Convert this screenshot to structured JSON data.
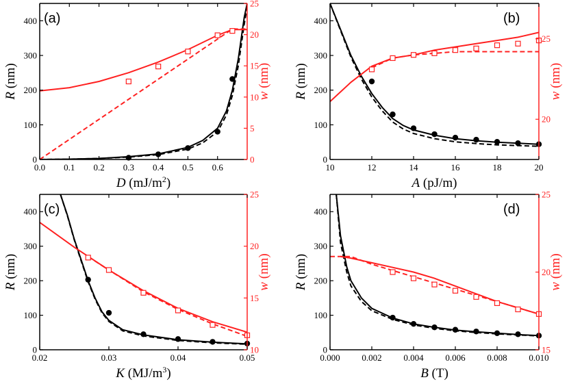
{
  "colors": {
    "black": "#000000",
    "red": "#ff2020"
  },
  "chart_data": [
    {
      "type": "line",
      "panel_label": "(a)",
      "xlabel_sym": "D",
      "xlabel_unit": " (mJ/m",
      "xlabel_sup": "2",
      "xlabel_end": ")",
      "ylabel_left_sym": "R",
      "ylabel_left_unit": " (nm)",
      "ylabel_right_sym": "w",
      "ylabel_right_unit": " (nm)",
      "xlim": [
        0,
        0.7
      ],
      "ylim_left": [
        0,
        450
      ],
      "ylim_right": [
        0,
        25
      ],
      "x_ticks": [
        0,
        0.1,
        0.2,
        0.3,
        0.4,
        0.5,
        0.6
      ],
      "x_tick_labels": [
        "0.0",
        "0.1",
        "0.2",
        "0.3",
        "0.4",
        "0.5",
        "0.6"
      ],
      "y_left_ticks": [
        0,
        100,
        200,
        300,
        400
      ],
      "y_left_tick_labels": [
        "0",
        "100",
        "200",
        "300",
        "400"
      ],
      "y_right_ticks": [
        0,
        5,
        10,
        15,
        20,
        25
      ],
      "y_right_tick_labels": [
        "0",
        "5",
        "10",
        "15",
        "20",
        "25"
      ],
      "series": [
        {
          "axis": "left",
          "color": "black",
          "style": "points",
          "marker": "filled-circle",
          "x": [
            0.3,
            0.4,
            0.5,
            0.6,
            0.65
          ],
          "y": [
            5,
            15,
            33,
            80,
            232
          ]
        },
        {
          "axis": "left",
          "color": "black",
          "style": "solid",
          "x": [
            0,
            0.1,
            0.2,
            0.3,
            0.4,
            0.5,
            0.55,
            0.6,
            0.63,
            0.65,
            0.67,
            0.69,
            0.7
          ],
          "y": [
            0,
            1,
            3,
            8,
            16,
            35,
            55,
            90,
            140,
            200,
            290,
            410,
            450
          ]
        },
        {
          "axis": "left",
          "color": "black",
          "style": "dashed",
          "x": [
            0,
            0.1,
            0.2,
            0.3,
            0.4,
            0.5,
            0.55,
            0.6,
            0.63,
            0.65,
            0.67,
            0.69,
            0.7
          ],
          "y": [
            0,
            1,
            3,
            7,
            14,
            30,
            48,
            80,
            128,
            185,
            270,
            390,
            440
          ]
        },
        {
          "axis": "right",
          "color": "red",
          "style": "open-square",
          "x": [
            0.3,
            0.4,
            0.5,
            0.6,
            0.65
          ],
          "y": [
            12.5,
            14.9,
            17.3,
            19.9,
            20.6
          ]
        },
        {
          "axis": "right",
          "color": "red",
          "style": "solid",
          "x": [
            0,
            0.1,
            0.2,
            0.3,
            0.4,
            0.5,
            0.6,
            0.65,
            0.7
          ],
          "y": [
            11.0,
            11.5,
            12.5,
            13.9,
            15.6,
            17.6,
            19.9,
            20.8,
            20.8
          ]
        },
        {
          "axis": "right",
          "color": "red",
          "style": "dashed",
          "x": [
            0,
            0.65,
            0.7
          ],
          "y": [
            0,
            20.9,
            20.9
          ]
        }
      ]
    },
    {
      "type": "line",
      "panel_label": "(b)",
      "xlabel_sym": "A",
      "xlabel_unit": " (pJ/m)",
      "xlabel_sup": "",
      "xlabel_end": "",
      "ylabel_left_sym": "R",
      "ylabel_left_unit": " (nm)",
      "ylabel_right_sym": "w",
      "ylabel_right_unit": " (nm)",
      "xlim": [
        10,
        20
      ],
      "ylim_left": [
        0,
        450
      ],
      "ylim_right": [
        17.5,
        27.2
      ],
      "x_ticks": [
        10,
        12,
        14,
        16,
        18,
        20
      ],
      "x_tick_labels": [
        "10",
        "12",
        "14",
        "16",
        "18",
        "20"
      ],
      "y_left_ticks": [
        0,
        100,
        200,
        300,
        400
      ],
      "y_left_tick_labels": [
        "0",
        "100",
        "200",
        "300",
        "400"
      ],
      "y_right_ticks": [
        20,
        25
      ],
      "y_right_tick_labels": [
        "20",
        "25"
      ],
      "series": [
        {
          "axis": "left",
          "color": "black",
          "style": "points",
          "marker": "filled-circle",
          "x": [
            12,
            13,
            14,
            15,
            16,
            17,
            18,
            19,
            20
          ],
          "y": [
            225,
            130,
            90,
            73,
            63,
            57,
            51,
            47,
            44
          ]
        },
        {
          "axis": "left",
          "color": "black",
          "style": "solid",
          "x": [
            10,
            10.5,
            11,
            11.5,
            12,
            12.5,
            13,
            13.5,
            14,
            15,
            16,
            17,
            18,
            19,
            20
          ],
          "y": [
            450,
            375,
            300,
            240,
            190,
            150,
            118,
            98,
            85,
            70,
            60,
            54,
            50,
            47,
            44
          ]
        },
        {
          "axis": "left",
          "color": "black",
          "style": "dashed",
          "x": [
            10,
            10.5,
            11,
            11.5,
            12,
            12.5,
            13,
            13.5,
            14,
            15,
            16,
            17,
            18,
            19,
            20
          ],
          "y": [
            450,
            372,
            295,
            232,
            180,
            140,
            108,
            88,
            75,
            60,
            51,
            46,
            42,
            40,
            38
          ]
        },
        {
          "axis": "right",
          "color": "red",
          "style": "open-square",
          "x": [
            12,
            13,
            14,
            15,
            16,
            17,
            18,
            19,
            20
          ],
          "y": [
            23.1,
            23.8,
            24.0,
            24.1,
            24.3,
            24.4,
            24.6,
            24.7,
            24.9
          ]
        },
        {
          "axis": "right",
          "color": "red",
          "style": "solid",
          "x": [
            10,
            11,
            12,
            13,
            14,
            15,
            16,
            17,
            18,
            19,
            20
          ],
          "y": [
            21.1,
            22.3,
            23.3,
            23.8,
            24.0,
            24.3,
            24.5,
            24.7,
            24.9,
            25.1,
            25.4
          ]
        },
        {
          "axis": "right",
          "color": "red",
          "style": "dashed",
          "x": [
            12,
            13,
            14,
            15,
            16,
            17,
            18,
            19,
            20
          ],
          "y": [
            23.2,
            23.8,
            24.0,
            24.1,
            24.2,
            24.2,
            24.2,
            24.2,
            24.2
          ]
        }
      ]
    },
    {
      "type": "line",
      "panel_label": "(c)",
      "xlabel_sym": "K",
      "xlabel_unit": " (MJ/m",
      "xlabel_sup": "3",
      "xlabel_end": ")",
      "ylabel_left_sym": "R",
      "ylabel_left_unit": " (nm)",
      "ylabel_right_sym": "w",
      "ylabel_right_unit": " (nm)",
      "xlim": [
        0.02,
        0.05
      ],
      "ylim_left": [
        0,
        450
      ],
      "ylim_right": [
        10,
        25
      ],
      "x_ticks": [
        0.02,
        0.03,
        0.04,
        0.05
      ],
      "x_tick_labels": [
        "0.02",
        "0.03",
        "0.04",
        "0.05"
      ],
      "y_left_ticks": [
        0,
        100,
        200,
        300,
        400
      ],
      "y_left_tick_labels": [
        "0",
        "100",
        "200",
        "300",
        "400"
      ],
      "y_right_ticks": [
        10,
        15,
        20,
        25
      ],
      "y_right_tick_labels": [
        "10",
        "15",
        "20",
        "25"
      ],
      "series": [
        {
          "axis": "left",
          "color": "black",
          "style": "points",
          "marker": "filled-circle",
          "x": [
            0.027,
            0.03,
            0.035,
            0.04,
            0.045,
            0.05
          ],
          "y": [
            203,
            107,
            45,
            31,
            23,
            18
          ]
        },
        {
          "axis": "left",
          "color": "black",
          "style": "solid",
          "x": [
            0.023,
            0.024,
            0.025,
            0.026,
            0.027,
            0.028,
            0.029,
            0.03,
            0.032,
            0.035,
            0.04,
            0.045,
            0.05
          ],
          "y": [
            450,
            390,
            320,
            260,
            200,
            150,
            110,
            85,
            58,
            43,
            29,
            22,
            17
          ]
        },
        {
          "axis": "left",
          "color": "black",
          "style": "dashed",
          "x": [
            0.023,
            0.024,
            0.025,
            0.026,
            0.027,
            0.028,
            0.029,
            0.03,
            0.032,
            0.035,
            0.04,
            0.045,
            0.05
          ],
          "y": [
            450,
            388,
            318,
            257,
            197,
            147,
            107,
            82,
            55,
            40,
            27,
            20,
            16
          ]
        },
        {
          "axis": "right",
          "color": "red",
          "style": "open-square",
          "x": [
            0.027,
            0.03,
            0.035,
            0.04,
            0.045,
            0.05
          ],
          "y": [
            18.9,
            17.7,
            15.5,
            13.8,
            12.4,
            11.4
          ]
        },
        {
          "axis": "right",
          "color": "red",
          "style": "solid",
          "x": [
            0.02,
            0.025,
            0.03,
            0.035,
            0.04,
            0.045,
            0.05
          ],
          "y": [
            22.3,
            19.9,
            17.7,
            15.7,
            14.0,
            12.7,
            11.7
          ]
        },
        {
          "axis": "right",
          "color": "red",
          "style": "dashed",
          "x": [
            0.027,
            0.03,
            0.035,
            0.04,
            0.045,
            0.05
          ],
          "y": [
            19.0,
            17.7,
            15.6,
            13.9,
            12.5,
            11.3
          ]
        }
      ]
    },
    {
      "type": "line",
      "panel_label": "(d)",
      "xlabel_sym": "B",
      "xlabel_unit": " (T)",
      "xlabel_sup": "",
      "xlabel_end": "",
      "ylabel_left_sym": "R",
      "ylabel_left_unit": " (nm)",
      "ylabel_right_sym": "w",
      "ylabel_right_unit": " (nm)",
      "xlim": [
        0,
        0.01
      ],
      "ylim_left": [
        0,
        450
      ],
      "ylim_right": [
        15,
        25
      ],
      "x_ticks": [
        0,
        0.002,
        0.004,
        0.006,
        0.008,
        0.01
      ],
      "x_tick_labels": [
        "0.000",
        "0.002",
        "0.004",
        "0.006",
        "0.008",
        "0.010"
      ],
      "y_left_ticks": [
        0,
        100,
        200,
        300,
        400
      ],
      "y_left_tick_labels": [
        "0",
        "100",
        "200",
        "300",
        "400"
      ],
      "y_right_ticks": [
        15,
        20,
        25
      ],
      "y_right_tick_labels": [
        "15",
        "20",
        "25"
      ],
      "series": [
        {
          "axis": "left",
          "color": "black",
          "style": "points",
          "marker": "filled-circle",
          "x": [
            0.003,
            0.004,
            0.005,
            0.006,
            0.007,
            0.008,
            0.009,
            0.01
          ],
          "y": [
            93,
            75,
            65,
            58,
            53,
            48,
            45,
            41
          ]
        },
        {
          "axis": "left",
          "color": "black",
          "style": "solid",
          "x": [
            0.0003,
            0.0005,
            0.0008,
            0.001,
            0.0015,
            0.002,
            0.003,
            0.004,
            0.005,
            0.006,
            0.007,
            0.008,
            0.009,
            0.01
          ],
          "y": [
            450,
            330,
            240,
            200,
            150,
            120,
            92,
            75,
            65,
            57,
            52,
            48,
            44,
            41
          ]
        },
        {
          "axis": "left",
          "color": "black",
          "style": "dashed",
          "x": [
            0.0003,
            0.0005,
            0.0008,
            0.001,
            0.0015,
            0.002,
            0.003,
            0.004,
            0.005,
            0.006,
            0.007,
            0.008,
            0.009,
            0.01
          ],
          "y": [
            450,
            310,
            225,
            185,
            140,
            113,
            88,
            72,
            62,
            55,
            50,
            46,
            43,
            40
          ]
        },
        {
          "axis": "right",
          "color": "red",
          "style": "open-square",
          "x": [
            0.003,
            0.004,
            0.005,
            0.006,
            0.007,
            0.008,
            0.009,
            0.01
          ],
          "y": [
            20.0,
            19.6,
            19.2,
            18.8,
            18.4,
            18.0,
            17.6,
            17.3
          ]
        },
        {
          "axis": "right",
          "color": "red",
          "style": "solid",
          "x": [
            0.0005,
            0.001,
            0.002,
            0.003,
            0.004,
            0.005,
            0.006,
            0.007,
            0.008,
            0.009,
            0.01
          ],
          "y": [
            21.0,
            20.9,
            20.6,
            20.3,
            20.0,
            19.6,
            19.1,
            18.6,
            18.1,
            17.7,
            17.3
          ]
        },
        {
          "axis": "right",
          "color": "red",
          "style": "dashed",
          "x": [
            0,
            0.001,
            0.002,
            0.003,
            0.004,
            0.005,
            0.006,
            0.007,
            0.008,
            0.009,
            0.01
          ],
          "y": [
            21.0,
            21.0,
            20.5,
            20.1,
            19.7,
            19.3,
            18.9,
            18.5,
            18.1,
            17.7,
            17.3
          ]
        }
      ]
    }
  ]
}
